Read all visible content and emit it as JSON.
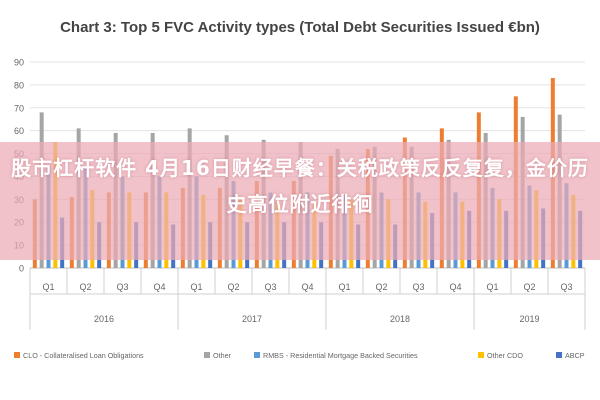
{
  "chart_data": {
    "type": "bar",
    "title": "Chart 3: Top 5 FVC Activity types (Total Debt Securities Issued €bn)",
    "ylim": [
      0,
      90
    ],
    "yticks": [
      0,
      10,
      20,
      30,
      40,
      50,
      60,
      70,
      80,
      90
    ],
    "grid": true,
    "legend_position": "bottom",
    "categories": [
      "Q1",
      "Q2",
      "Q3",
      "Q4",
      "Q1",
      "Q2",
      "Q3",
      "Q4",
      "Q1",
      "Q2",
      "Q3",
      "Q4",
      "Q1",
      "Q2",
      "Q3"
    ],
    "years": [
      {
        "label": "2016",
        "quarters": 4
      },
      {
        "label": "2017",
        "quarters": 4
      },
      {
        "label": "2018",
        "quarters": 4
      },
      {
        "label": "2019",
        "quarters": 3
      }
    ],
    "series": [
      {
        "name": "CLO - Collateralised Loan Obligations",
        "color": "#ed7d31",
        "values": [
          30,
          31,
          33,
          33,
          35,
          35,
          38,
          38,
          49,
          52,
          57,
          61,
          68,
          75,
          83
        ]
      },
      {
        "name": "Other",
        "color": "#a5a5a5",
        "values": [
          68,
          61,
          59,
          59,
          61,
          58,
          56,
          55,
          52,
          53,
          53,
          56,
          59,
          66,
          67
        ]
      },
      {
        "name": "RMBS - Residential Mortgage Backed Securities",
        "color": "#5b9bd5",
        "values": [
          45,
          44,
          40,
          40,
          40,
          38,
          33,
          33,
          32,
          33,
          33,
          33,
          35,
          36,
          37
        ]
      },
      {
        "name": "Other CDO",
        "color": "#ffc000",
        "values": [
          55,
          34,
          33,
          33,
          32,
          30,
          29,
          29,
          30,
          30,
          29,
          29,
          30,
          34,
          32
        ]
      },
      {
        "name": "ABCP",
        "color": "#4472c4",
        "values": [
          22,
          20,
          20,
          19,
          20,
          20,
          20,
          20,
          19,
          19,
          24,
          25,
          25,
          26,
          25
        ]
      }
    ]
  },
  "overlay": {
    "text": "股市杠杆软件 4月16日财经早餐：关税政策反反复复，金价历史高位附近徘徊"
  }
}
